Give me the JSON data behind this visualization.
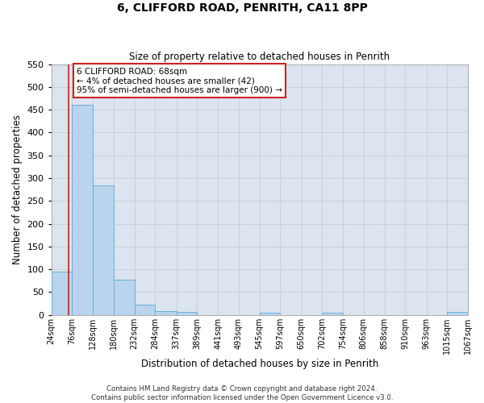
{
  "title": "6, CLIFFORD ROAD, PENRITH, CA11 8PP",
  "subtitle": "Size of property relative to detached houses in Penrith",
  "xlabel": "Distribution of detached houses by size in Penrith",
  "ylabel": "Number of detached properties",
  "footnote1": "Contains HM Land Registry data © Crown copyright and database right 2024.",
  "footnote2": "Contains public sector information licensed under the Open Government Licence v3.0.",
  "bar_edges": [
    24,
    76,
    128,
    180,
    232,
    284,
    337,
    389,
    441,
    493,
    545,
    597,
    650,
    702,
    754,
    806,
    858,
    910,
    963,
    1015,
    1067
  ],
  "bar_heights": [
    95,
    460,
    285,
    77,
    22,
    9,
    6,
    0,
    0,
    0,
    5,
    0,
    0,
    5,
    0,
    0,
    0,
    0,
    0,
    6
  ],
  "bar_color": "#bad4ed",
  "bar_edge_color": "#6aaed6",
  "grid_color": "#c8d0dc",
  "bg_color": "#dce4f0",
  "property_line_x": 68,
  "property_line_color": "#cc2222",
  "annotation_line1": "6 CLIFFORD ROAD: 68sqm",
  "annotation_line2": "← 4% of detached houses are smaller (42)",
  "annotation_line3": "95% of semi-detached houses are larger (900) →",
  "annotation_box_color": "#cc2222",
  "ylim": [
    0,
    550
  ],
  "yticks": [
    0,
    50,
    100,
    150,
    200,
    250,
    300,
    350,
    400,
    450,
    500,
    550
  ],
  "tick_labels": [
    "24sqm",
    "76sqm",
    "128sqm",
    "180sqm",
    "232sqm",
    "284sqm",
    "337sqm",
    "389sqm",
    "441sqm",
    "493sqm",
    "545sqm",
    "597sqm",
    "650sqm",
    "702sqm",
    "754sqm",
    "806sqm",
    "858sqm",
    "910sqm",
    "963sqm",
    "1015sqm",
    "1067sqm"
  ]
}
